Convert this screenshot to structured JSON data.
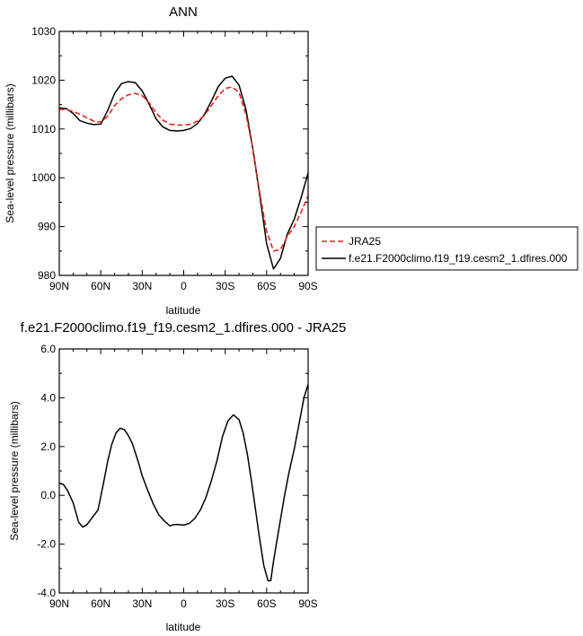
{
  "chart_data": [
    {
      "type": "line",
      "title": "ANN",
      "xlabel": "latitude",
      "ylabel": "Sea-level pressure (millibars)",
      "x_tick_labels": [
        "90N",
        "60N",
        "30N",
        "0",
        "30S",
        "60S",
        "90S"
      ],
      "x_tick_values": [
        90,
        60,
        30,
        0,
        -30,
        -60,
        -90
      ],
      "xlim": [
        90,
        -90
      ],
      "ylim": [
        980,
        1030
      ],
      "y_ticks": [
        980,
        990,
        1000,
        1010,
        1020,
        1030
      ],
      "y_tick_labels": [
        "980",
        "990",
        "1000",
        "1010",
        "1020",
        "1030"
      ],
      "legend_position": "right",
      "series": [
        {
          "name": "JRA25",
          "color": "#e8241c",
          "dash": "dashed",
          "x": [
            90,
            85,
            80,
            75,
            70,
            65,
            60,
            55,
            50,
            45,
            40,
            35,
            30,
            25,
            20,
            15,
            10,
            5,
            0,
            -5,
            -10,
            -15,
            -20,
            -25,
            -30,
            -35,
            -40,
            -45,
            -50,
            -55,
            -60,
            -65,
            -70,
            -75,
            -80,
            -85,
            -90
          ],
          "y": [
            1014.0,
            1014.0,
            1013.6,
            1013.0,
            1012.3,
            1011.6,
            1011.4,
            1012.6,
            1014.8,
            1016.2,
            1017.0,
            1017.3,
            1016.8,
            1015.4,
            1013.3,
            1011.8,
            1011.0,
            1010.8,
            1010.8,
            1011.0,
            1011.6,
            1012.8,
            1014.8,
            1016.8,
            1018.3,
            1018.6,
            1017.5,
            1013.0,
            1006.0,
            997.0,
            989.0,
            985.0,
            985.3,
            988.0,
            990.0,
            993.0,
            996.3
          ]
        },
        {
          "name": "f.e21.F2000climo.f19_f19.cesm2_1.dfires.000",
          "color": "#000000",
          "dash": "solid",
          "x": [
            90,
            85,
            80,
            75,
            70,
            65,
            60,
            55,
            50,
            45,
            40,
            35,
            30,
            25,
            20,
            15,
            10,
            5,
            0,
            -5,
            -10,
            -15,
            -20,
            -25,
            -30,
            -35,
            -40,
            -45,
            -50,
            -55,
            -60,
            -65,
            -70,
            -75,
            -80,
            -85,
            -90
          ],
          "y": [
            1014.3,
            1014.2,
            1013.2,
            1011.7,
            1011.2,
            1010.9,
            1011.0,
            1013.8,
            1017.3,
            1019.3,
            1019.7,
            1019.5,
            1017.8,
            1015.1,
            1012.1,
            1010.4,
            1009.7,
            1009.6,
            1009.7,
            1010.1,
            1011.1,
            1013.0,
            1015.7,
            1018.7,
            1020.4,
            1020.8,
            1019.0,
            1014.0,
            1006.0,
            996.5,
            986.5,
            981.3,
            983.5,
            988.5,
            991.5,
            996.0,
            1001.0
          ]
        }
      ]
    },
    {
      "type": "line",
      "title": "f.e21.F2000climo.f19_f19.cesm2_1.dfires.000 - JRA25",
      "xlabel": "latitude",
      "ylabel": "Sea-level pressure (millibars)",
      "x_tick_labels": [
        "90N",
        "60N",
        "30N",
        "0",
        "30S",
        "60S",
        "90S"
      ],
      "x_tick_values": [
        90,
        60,
        30,
        0,
        -30,
        -60,
        -90
      ],
      "xlim": [
        90,
        -90
      ],
      "ylim": [
        -4,
        6
      ],
      "y_ticks": [
        -4,
        -2,
        0,
        2,
        4,
        6
      ],
      "y_tick_labels": [
        "-4.0",
        "-2.0",
        "0.0",
        "2.0",
        "4.0",
        "6.0"
      ],
      "series": [
        {
          "color": "#000000",
          "dash": "solid",
          "x": [
            90,
            87,
            84,
            80,
            76,
            73,
            70,
            66,
            62,
            58,
            55,
            52,
            49,
            46,
            43,
            40,
            37,
            33,
            30,
            26,
            22,
            18,
            14,
            10,
            7,
            4,
            0,
            -4,
            -8,
            -12,
            -16,
            -20,
            -24,
            -28,
            -32,
            -36,
            -40,
            -43,
            -46,
            -49,
            -52,
            -55,
            -58,
            -61,
            -63,
            -65,
            -67,
            -70,
            -73,
            -76,
            -80,
            -84,
            -87,
            -90
          ],
          "y": [
            0.5,
            0.45,
            0.2,
            -0.3,
            -1.1,
            -1.3,
            -1.2,
            -0.9,
            -0.6,
            0.5,
            1.4,
            2.1,
            2.55,
            2.75,
            2.7,
            2.45,
            2.1,
            1.4,
            0.8,
            0.2,
            -0.35,
            -0.8,
            -1.05,
            -1.25,
            -1.2,
            -1.2,
            -1.22,
            -1.15,
            -0.95,
            -0.6,
            -0.1,
            0.6,
            1.4,
            2.4,
            3.05,
            3.3,
            3.1,
            2.55,
            1.7,
            0.6,
            -0.6,
            -1.8,
            -2.9,
            -3.5,
            -3.5,
            -2.7,
            -2.0,
            -1.0,
            0.0,
            0.9,
            1.9,
            3.1,
            4.0,
            4.55
          ]
        }
      ]
    }
  ]
}
